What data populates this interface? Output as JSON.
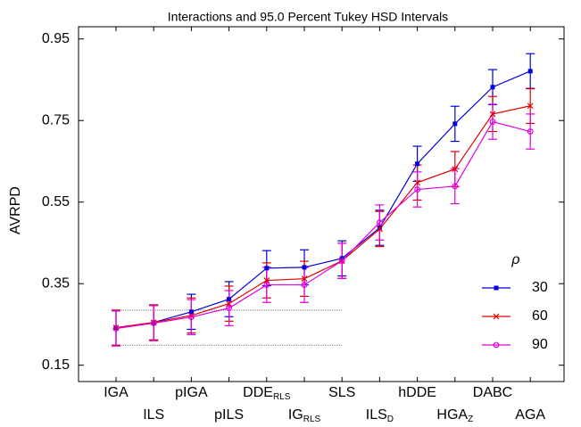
{
  "chart_data": {
    "type": "line",
    "title": "Interactions and 95.0 Percent Tukey HSD Intervals",
    "y_label": "AVRPD",
    "legend_title": "ρ",
    "categories": [
      "IGA",
      "ILS",
      "pIGA",
      "pILS",
      "DDE",
      "IG",
      "SLS",
      "ILS",
      "hDDE",
      "HGA",
      "DABC",
      "AGA"
    ],
    "category_subscripts": [
      null,
      null,
      null,
      null,
      "RLS",
      "RLS",
      null,
      "D",
      null,
      "Z",
      null,
      null
    ],
    "series": [
      {
        "name": "30",
        "color": "#0000e0",
        "marker": "square",
        "values": [
          0.242,
          0.255,
          0.281,
          0.312,
          0.388,
          0.39,
          0.412,
          0.487,
          0.644,
          0.742,
          0.832,
          0.871
        ],
        "errors": [
          0.043,
          0.043,
          0.043,
          0.043,
          0.043,
          0.043,
          0.043,
          0.043,
          0.043,
          0.043,
          0.043,
          0.043
        ]
      },
      {
        "name": "60",
        "color": "#e00000",
        "marker": "x",
        "values": [
          0.242,
          0.255,
          0.272,
          0.301,
          0.358,
          0.362,
          0.406,
          0.484,
          0.598,
          0.631,
          0.766,
          0.786
        ],
        "errors": [
          0.043,
          0.043,
          0.043,
          0.043,
          0.043,
          0.043,
          0.043,
          0.043,
          0.043,
          0.043,
          0.043,
          0.043
        ]
      },
      {
        "name": "90",
        "color": "#e000e0",
        "marker": "circle",
        "values": [
          0.24,
          0.253,
          0.268,
          0.29,
          0.347,
          0.347,
          0.406,
          0.5,
          0.581,
          0.589,
          0.747,
          0.723
        ],
        "errors": [
          0.043,
          0.043,
          0.043,
          0.043,
          0.043,
          0.043,
          0.043,
          0.043,
          0.043,
          0.043,
          0.043,
          0.043
        ]
      }
    ],
    "ylim": [
      0.11,
      0.98
    ],
    "yticks": [
      0.15,
      0.35,
      0.55,
      0.75,
      0.95
    ],
    "legend": "right"
  }
}
